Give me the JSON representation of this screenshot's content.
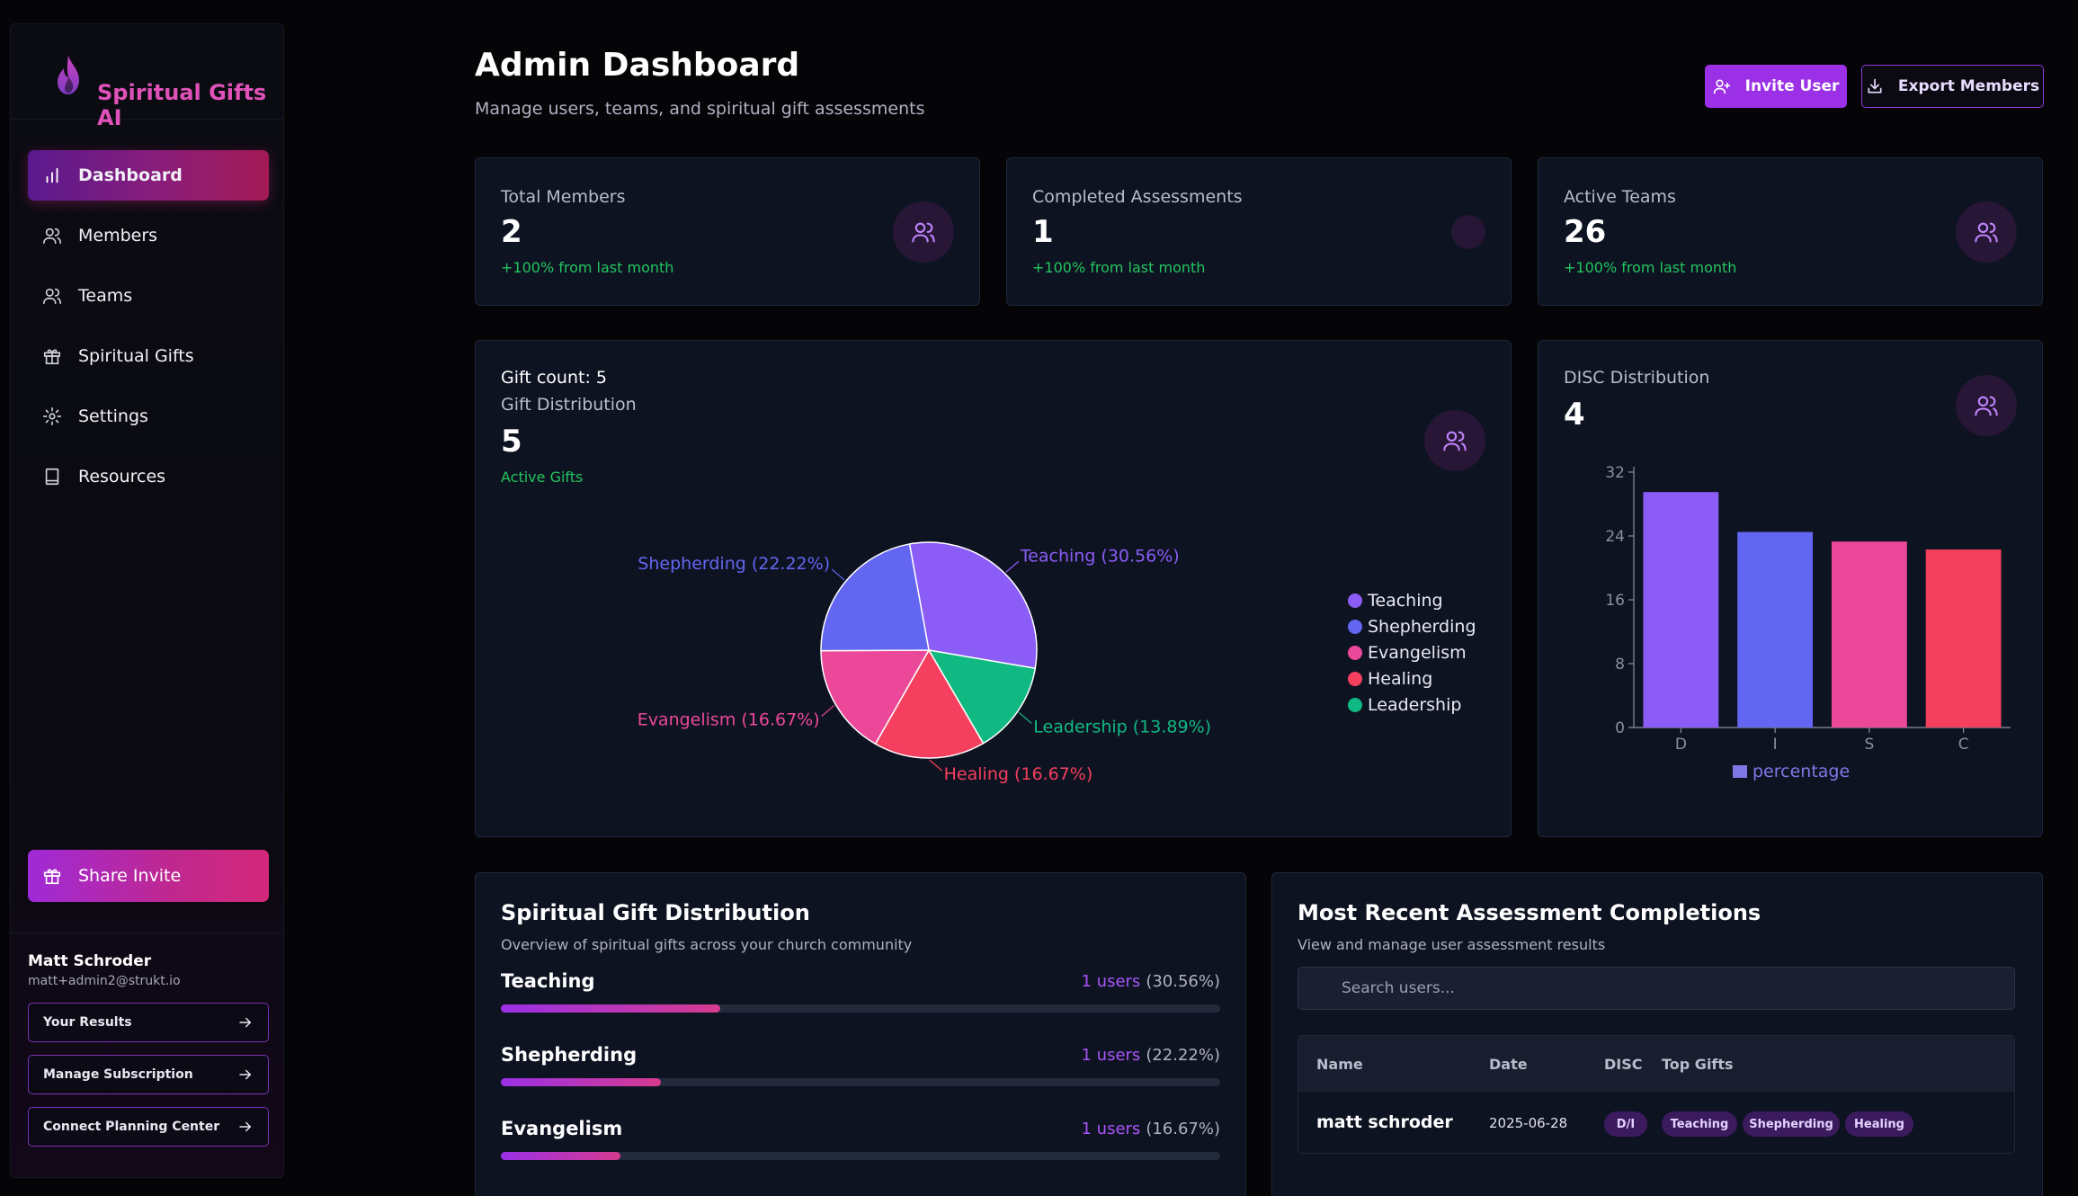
{
  "brand": {
    "name": "Spiritual Gifts AI",
    "accent": "#e052b9"
  },
  "sidebar": {
    "items": [
      {
        "label": "Dashboard",
        "icon": "bar-chart-icon",
        "active": true
      },
      {
        "label": "Members",
        "icon": "users-icon"
      },
      {
        "label": "Teams",
        "icon": "users-icon"
      },
      {
        "label": "Spiritual Gifts",
        "icon": "gift-icon"
      },
      {
        "label": "Settings",
        "icon": "gear-icon"
      },
      {
        "label": "Resources",
        "icon": "book-icon"
      }
    ],
    "share_label": "Share Invite",
    "user": {
      "name": "Matt Schroder",
      "email": "matt+admin2@strukt.io"
    },
    "links": [
      {
        "label": "Your Results"
      },
      {
        "label": "Manage Subscription"
      },
      {
        "label": "Connect Planning Center"
      }
    ]
  },
  "header": {
    "title": "Admin Dashboard",
    "subtitle": "Manage users, teams, and spiritual gift assessments",
    "invite_label": "Invite User",
    "export_label": "Export Members"
  },
  "stats": [
    {
      "label": "Total Members",
      "value": "2",
      "delta": "+100% from last month"
    },
    {
      "label": "Completed Assessments",
      "value": "1",
      "delta": "+100% from last month"
    },
    {
      "label": "Active Teams",
      "value": "26",
      "delta": "+100% from last month"
    }
  ],
  "gift_card": {
    "count_label": "Gift count: 5",
    "title": "Gift Distribution",
    "value": "5",
    "sub": "Active Gifts"
  },
  "disc_card": {
    "title": "DISC Distribution",
    "value": "4"
  },
  "chart_data": [
    {
      "type": "pie",
      "title": "Gift Distribution",
      "slices": [
        {
          "label": "Teaching",
          "value": 30.56,
          "display": "Teaching (30.56%)",
          "color": "#8b5cf6"
        },
        {
          "label": "Leadership",
          "value": 13.89,
          "display": "Leadership (13.89%)",
          "color": "#10b981"
        },
        {
          "label": "Healing",
          "value": 16.67,
          "display": "Healing (16.67%)",
          "color": "#f43f5e"
        },
        {
          "label": "Evangelism",
          "value": 16.67,
          "display": "Evangelism (16.67%)",
          "color": "#ec4899"
        },
        {
          "label": "Shepherding",
          "value": 22.22,
          "display": "Shepherding (22.22%)",
          "color": "#6366f1"
        }
      ],
      "legend": [
        "Teaching",
        "Shepherding",
        "Evangelism",
        "Healing",
        "Leadership"
      ],
      "legend_colors": [
        "#8b5cf6",
        "#6366f1",
        "#ec4899",
        "#f43f5e",
        "#10b981"
      ]
    },
    {
      "type": "bar",
      "title": "DISC Distribution",
      "categories": [
        "D",
        "I",
        "S",
        "C"
      ],
      "series": [
        {
          "name": "percentage",
          "values": [
            29.5,
            24.5,
            23.3,
            22.3
          ]
        }
      ],
      "colors": [
        "#8b5cf6",
        "#6366f1",
        "#ec4899",
        "#f43f5e"
      ],
      "ylim": [
        0,
        32
      ],
      "yticks": [
        "0",
        "8",
        "16",
        "24",
        "32"
      ],
      "legend_label": "percentage",
      "legend_color": "#7f77e6"
    }
  ],
  "distribution": {
    "title": "Spiritual Gift Distribution",
    "subtitle": "Overview of spiritual gifts across your church community",
    "rows": [
      {
        "name": "Teaching",
        "users": "1 users",
        "pct": "(30.56%)",
        "fill": 30.56
      },
      {
        "name": "Shepherding",
        "users": "1 users",
        "pct": "(22.22%)",
        "fill": 22.22
      },
      {
        "name": "Evangelism",
        "users": "1 users",
        "pct": "(16.67%)",
        "fill": 16.67
      }
    ]
  },
  "recent": {
    "title": "Most Recent Assessment Completions",
    "subtitle": "View and manage user assessment results",
    "search_placeholder": "Search users...",
    "columns": [
      "Name",
      "Date",
      "DISC",
      "Top Gifts"
    ],
    "rows": [
      {
        "name": "matt schroder",
        "date": "2025-06-28",
        "disc": "D/I",
        "gifts": [
          "Teaching",
          "Shepherding",
          "Healing"
        ]
      }
    ]
  }
}
